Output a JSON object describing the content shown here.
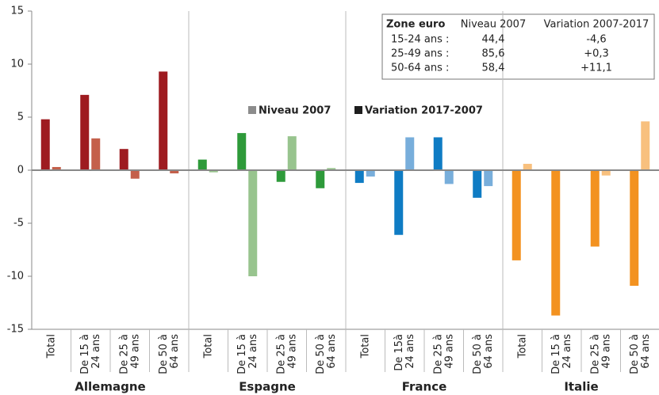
{
  "chart_data": {
    "type": "bar",
    "ylim": [
      -15,
      15
    ],
    "yticks": [
      -15,
      -10,
      -5,
      0,
      5,
      10,
      15
    ],
    "legend": [
      {
        "name": "Niveau 2007",
        "color": "#8c8c8c"
      },
      {
        "name": "Variation 2017-2007",
        "color": "#1e1e1e"
      }
    ],
    "groups": [
      {
        "name": "Allemagne",
        "color": "#9e1b20",
        "light_color": "#c4604b",
        "categories": [
          [
            "Total"
          ],
          [
            "De 15 à",
            "24 ans"
          ],
          [
            "De 25 à",
            "49 ans"
          ],
          [
            "De 50 à",
            "64 ans"
          ]
        ],
        "variation": [
          4.8,
          7.1,
          2.0,
          9.3
        ],
        "niveau": [
          0.3,
          3.0,
          -0.8,
          -0.3
        ]
      },
      {
        "name": "Espagne",
        "color": "#2e9a3a",
        "light_color": "#98c48e",
        "categories": [
          [
            "Total"
          ],
          [
            "De 15 à",
            "24 ans"
          ],
          [
            "De 25 à",
            "49 ans"
          ],
          [
            "De 50 à",
            "64 ans"
          ]
        ],
        "variation": [
          1.0,
          3.5,
          -1.1,
          -1.7
        ],
        "niveau": [
          -0.2,
          -10.0,
          3.2,
          0.2
        ]
      },
      {
        "name": "France",
        "color": "#0f7cc4",
        "light_color": "#78aedb",
        "categories": [
          [
            "Total"
          ],
          [
            "De 15à",
            "24 ans"
          ],
          [
            "De 25 à",
            "49 ans"
          ],
          [
            "De 50 à",
            "64 ans"
          ]
        ],
        "variation": [
          -1.2,
          -6.1,
          3.1,
          -2.6
        ],
        "niveau": [
          -0.6,
          3.1,
          -1.3,
          -1.5
        ]
      },
      {
        "name": "Italie",
        "color": "#f39220",
        "light_color": "#f8c07e",
        "categories": [
          [
            "Total"
          ],
          [
            "De 15 à",
            "24 ans"
          ],
          [
            "De 25 à",
            "49 ans"
          ],
          [
            "De 50 à",
            "64 ans"
          ]
        ],
        "variation": [
          -8.5,
          -13.7,
          -7.2,
          -10.9
        ],
        "niveau": [
          0.6,
          0.0,
          -0.5,
          4.6
        ]
      }
    ],
    "table": {
      "header": [
        "Zone euro",
        "Niveau 2007",
        "Variation 2007-2017"
      ],
      "rows": [
        [
          "15-24 ans :",
          "44,4",
          "-4,6"
        ],
        [
          "25-49 ans :",
          "85,6",
          "+0,3"
        ],
        [
          "50-64 ans :",
          "58,4",
          "+11,1"
        ]
      ]
    }
  }
}
